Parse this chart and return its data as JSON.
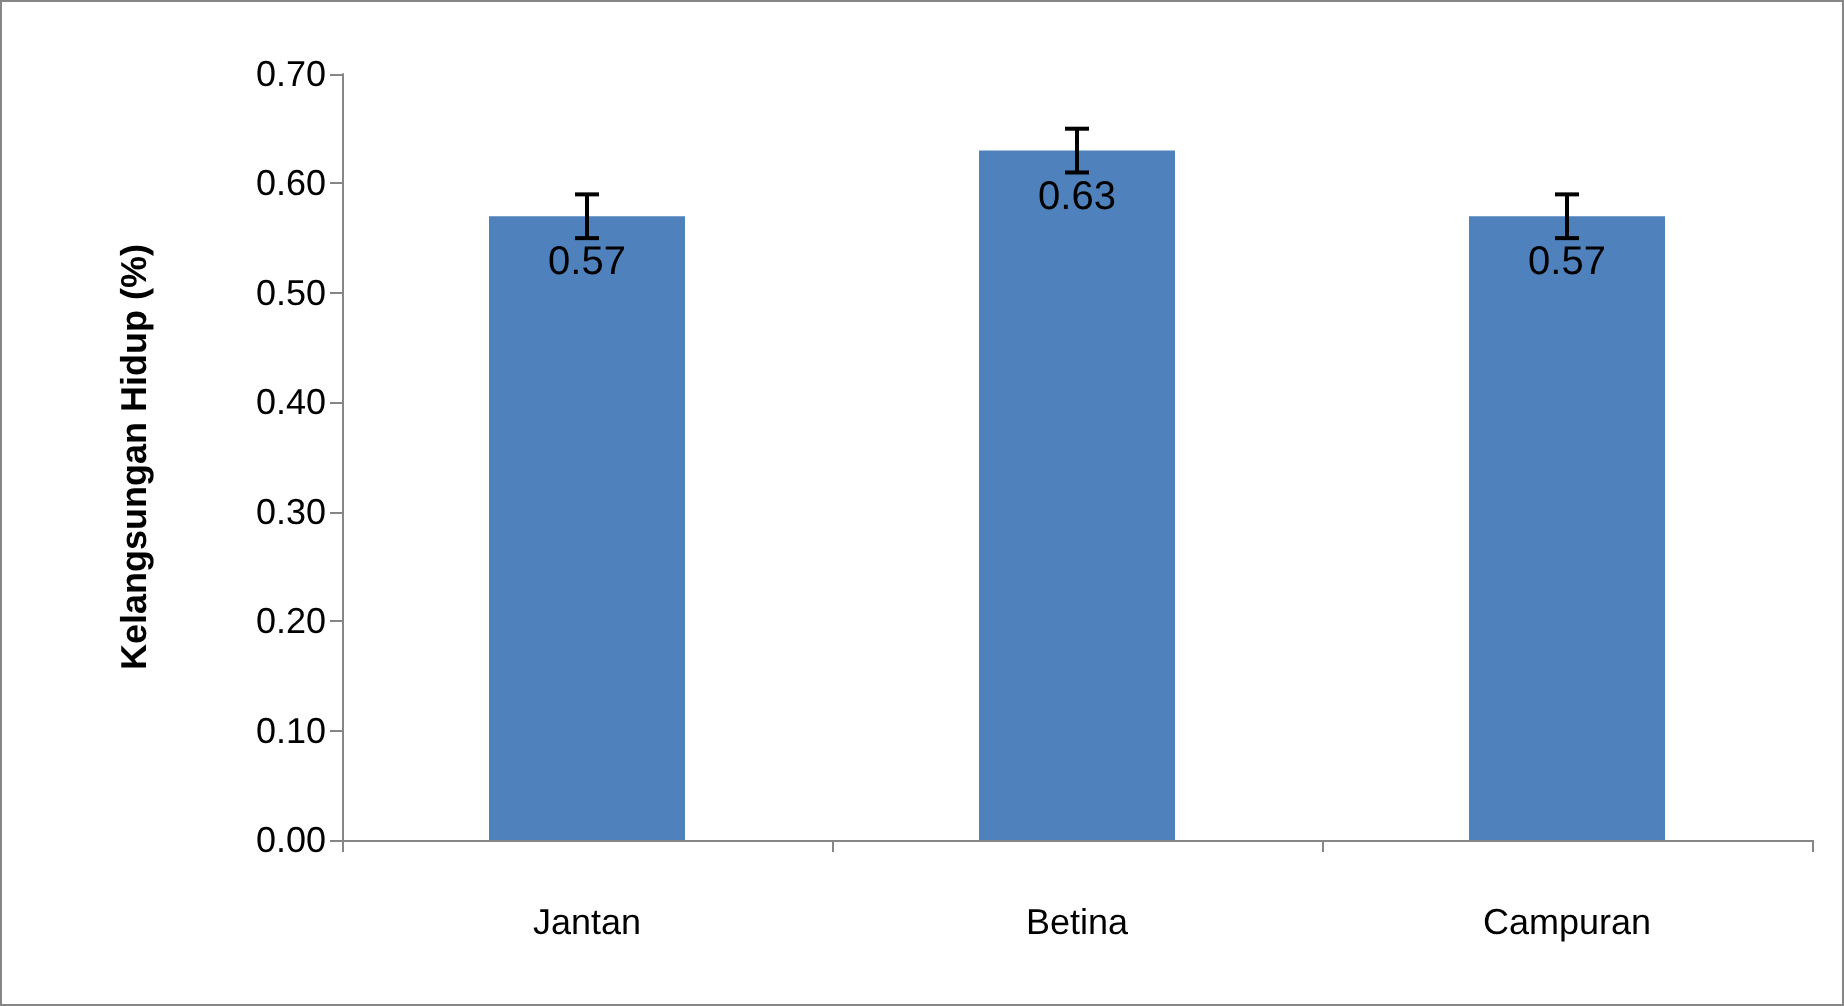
{
  "chart_data": {
    "type": "bar",
    "ylabel": "Kelangsungan Hidup (%)",
    "categories": [
      "Jantan",
      "Betina",
      "Campuran"
    ],
    "values": [
      0.57,
      0.63,
      0.57
    ],
    "errors": [
      0.02,
      0.02,
      0.02
    ],
    "color": "#4f81bd",
    "data_labels": true,
    "ylim": [
      0,
      0.7
    ],
    "yticks": [
      {
        "value": 0,
        "label": "0.00"
      },
      {
        "value": 0.1,
        "label": "0.10"
      },
      {
        "value": 0.2,
        "label": "0.20"
      },
      {
        "value": 0.3,
        "label": "0.30"
      },
      {
        "value": 0.4,
        "label": "0.40"
      },
      {
        "value": 0.5,
        "label": "0.50"
      },
      {
        "value": 0.6,
        "label": "0.60"
      },
      {
        "value": 0.7,
        "label": "0.70"
      }
    ]
  }
}
